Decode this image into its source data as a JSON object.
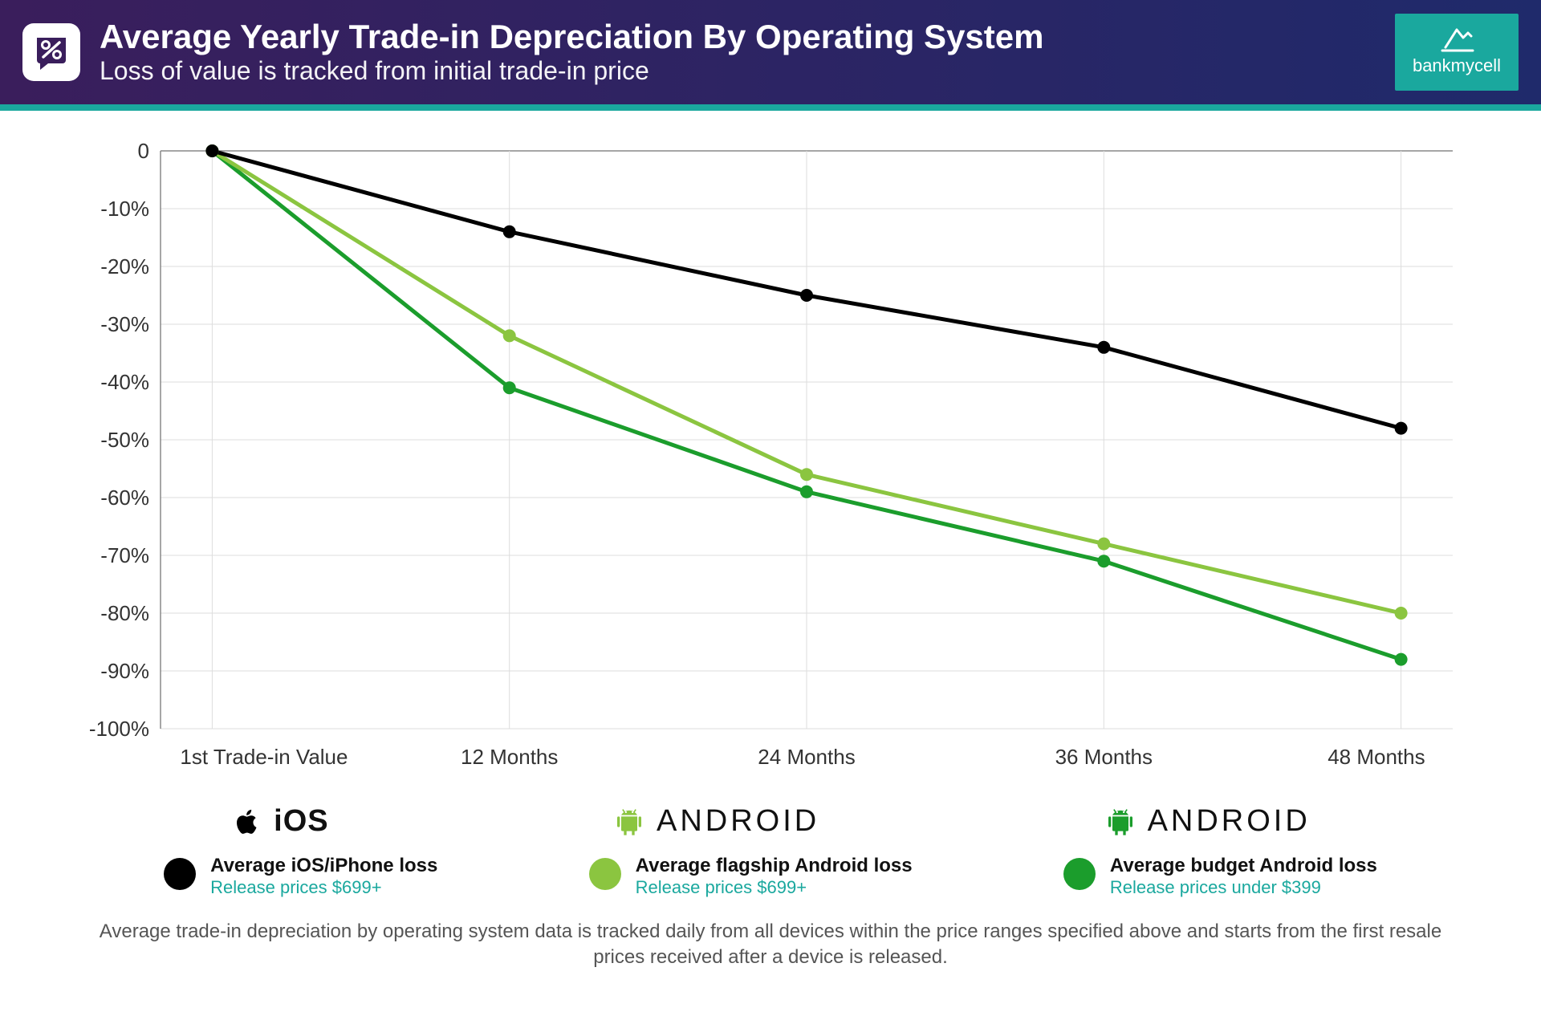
{
  "header": {
    "title": "Average Yearly Trade-in Depreciation By Operating System",
    "subtitle": "Loss of value is tracked from initial trade-in price",
    "bg_gradient_from": "#3a1e5c",
    "bg_gradient_to": "#1f2a6b",
    "logo_icon_color": "#3a1e5c",
    "brand_name": "bankmycell",
    "brand_bg": "#1aa89e",
    "teal_strip": "#1aa89e"
  },
  "chart": {
    "type": "line",
    "background_color": "#ffffff",
    "grid_color": "#dddddd",
    "axis_color": "#888888",
    "label_color": "#333333",
    "label_fontsize": 26,
    "x_categories": [
      "1st Trade-in Value",
      "12 Months",
      "24 Months",
      "36 Months",
      "48 Months"
    ],
    "ylim": [
      -100,
      0
    ],
    "ytick_step": 10,
    "y_labels": [
      "0",
      "-10%",
      "-20%",
      "-30%",
      "-40%",
      "-50%",
      "-60%",
      "-70%",
      "-80%",
      "-90%",
      "-100%"
    ],
    "line_width": 5,
    "marker_radius": 8,
    "series": [
      {
        "name": "ios",
        "color": "#000000",
        "values": [
          0,
          -14,
          -25,
          -34,
          -48
        ]
      },
      {
        "name": "android_flagship",
        "color": "#8bc540",
        "values": [
          0,
          -32,
          -56,
          -68,
          -80
        ]
      },
      {
        "name": "android_budget",
        "color": "#1b9d2c",
        "values": [
          0,
          -41,
          -59,
          -71,
          -88
        ]
      }
    ]
  },
  "platforms": {
    "ios": "iOS",
    "android_a": "android",
    "android_b": "android"
  },
  "legend": {
    "ios": {
      "title": "Average iOS/iPhone loss",
      "sub": "Release prices $699+",
      "color": "#000000",
      "sub_color": "#1aa89e"
    },
    "flag": {
      "title": "Average flagship Android loss",
      "sub": "Release prices $699+",
      "color": "#8bc540",
      "sub_color": "#1aa89e"
    },
    "budget": {
      "title": "Average budget Android loss",
      "sub": "Release prices under $399",
      "color": "#1b9d2c",
      "sub_color": "#1aa89e"
    }
  },
  "footnote": "Average trade-in depreciation by operating system data is tracked daily from all devices within the price ranges specified above and starts from the first resale prices received after a device is released."
}
